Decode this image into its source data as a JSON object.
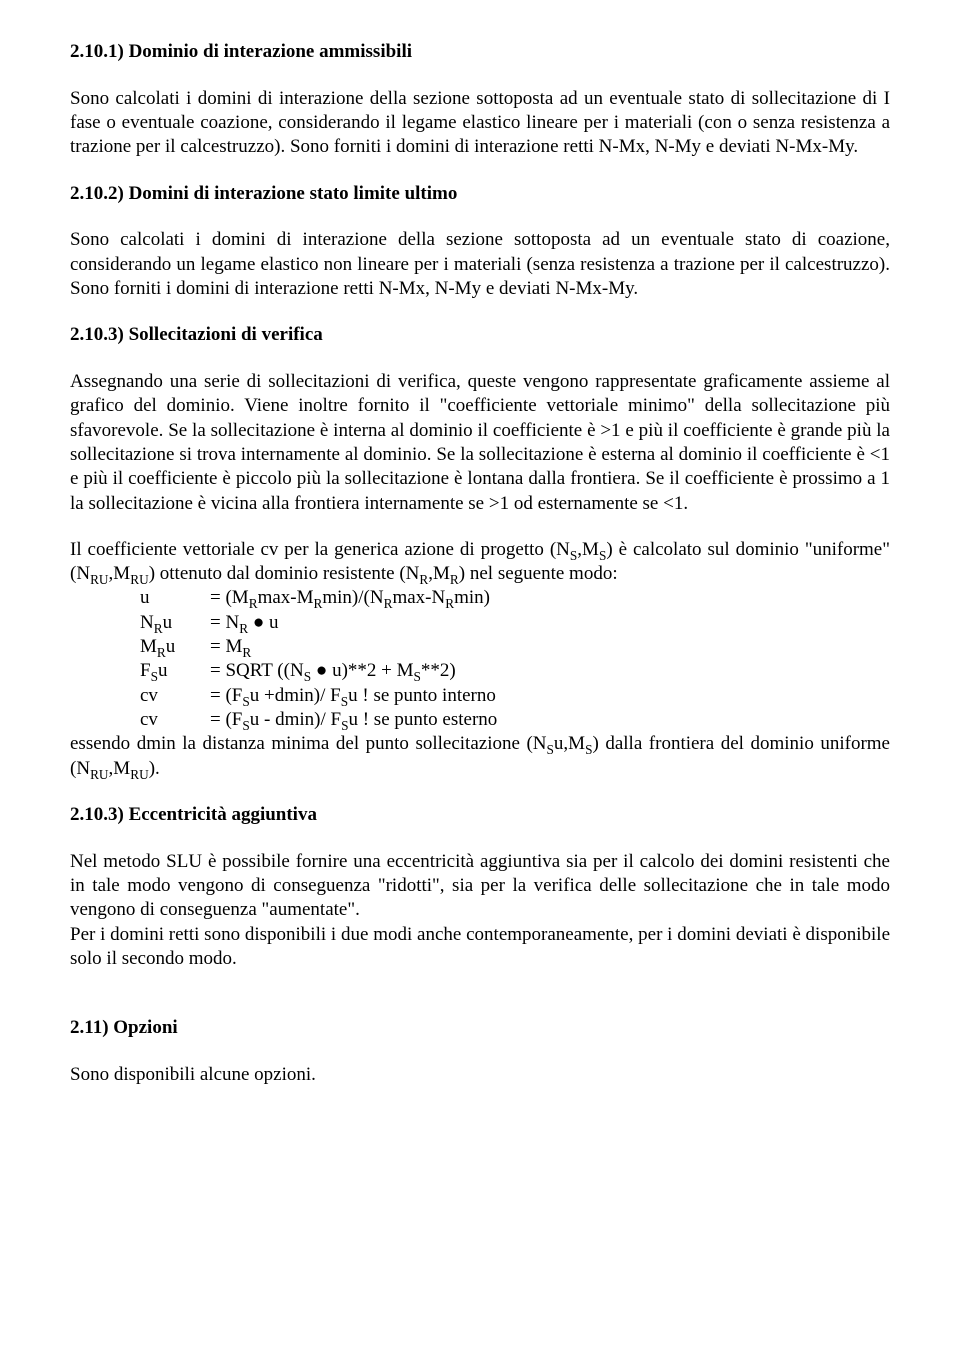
{
  "s1": {
    "heading": "2.10.1) Dominio di interazione ammissibili",
    "p1": "Sono calcolati i domini di interazione della sezione sottoposta ad un eventuale stato di sollecitazione di I fase o eventuale coazione, considerando il legame elastico lineare per i materiali (con o senza resistenza a trazione per il calcestruzzo). Sono forniti i domini di interazione retti N-Mx, N-My e deviati N-Mx-My."
  },
  "s2": {
    "heading": "2.10.2) Domini di interazione stato limite ultimo",
    "p1": "Sono calcolati i domini di interazione della sezione sottoposta ad un eventuale stato di coazione, considerando un legame elastico non lineare per i materiali (senza resistenza a trazione per il calcestruzzo). Sono forniti i domini di interazione retti N-Mx, N-My e deviati N-Mx-My."
  },
  "s3": {
    "heading": "2.10.3) Sollecitazioni di verifica",
    "p1": "Assegnando una serie di sollecitazioni di verifica, queste vengono rappresentate graficamente assieme al grafico del dominio. Viene inoltre fornito il \"coefficiente vettoriale minimo\" della sollecitazione più sfavorevole. Se la sollecitazione è interna al dominio il coefficiente è >1 e più il coefficiente è grande più la sollecitazione si trova internamente al dominio. Se la sollecitazione è esterna al dominio il coefficiente è <1 e più il coefficiente è piccolo più la sollecitazione è lontana dalla frontiera. Se il coefficiente è prossimo a 1 la sollecitazione è vicina alla frontiera internamente se >1 od esternamente se <1.",
    "p2_intro_a": "Il coefficiente vettoriale cv per la generica azione di progetto (N",
    "p2_intro_b": ",M",
    "p2_intro_c": ") è calcolato sul dominio \"uniforme\" (N",
    "p2_intro_d": ",M",
    "p2_intro_e": ") ottenuto dal dominio resistente (N",
    "p2_intro_f": ",M",
    "p2_intro_g": ") nel seguente modo:",
    "sub_S": "S",
    "sub_RU": "RU",
    "sub_R": "R",
    "f1_var": "u",
    "f1_a": "= (M",
    "f1_b": "max-M",
    "f1_c": "min)/(N",
    "f1_d": "max-N",
    "f1_e": "min)",
    "f2_var_a": "N",
    "f2_var_b": "u",
    "f2_a": "= N",
    "f2_b": " ● u",
    "f3_var_a": "M",
    "f3_var_b": "u",
    "f3_a": "= M",
    "f4_var_a": "F",
    "f4_var_b": "u",
    "f4_a": "= SQRT ((N",
    "f4_b": " ● u)**2 + M",
    "f4_c": "**2)",
    "f5_var": "cv",
    "f5_a": "= (F",
    "f5_b": "u +dmin)/ F",
    "f5_c": "u ! se punto interno",
    "f6_var": "cv",
    "f6_a": "= (F",
    "f6_b": "u - dmin)/ F",
    "f6_c": "u ! se punto esterno",
    "p3_a": "essendo dmin la distanza minima del punto sollecitazione (N",
    "p3_b": "u,M",
    "p3_c": ") dalla frontiera del dominio uniforme (N",
    "p3_d": ",M",
    "p3_e": ")."
  },
  "s4": {
    "heading": "2.10.3) Eccentricità aggiuntiva",
    "p1": "Nel metodo SLU è possibile fornire una eccentricità aggiuntiva sia per il calcolo dei domini resistenti che in tale modo vengono di conseguenza \"ridotti\", sia per la verifica delle sollecitazione che in tale modo vengono di conseguenza \"aumentate\".",
    "p2": "Per i domini retti sono disponibili i due modi anche contemporaneamente, per i domini deviati è disponibile solo il secondo modo."
  },
  "s5": {
    "heading": "2.11) Opzioni",
    "p1": "Sono disponibili alcune opzioni."
  }
}
